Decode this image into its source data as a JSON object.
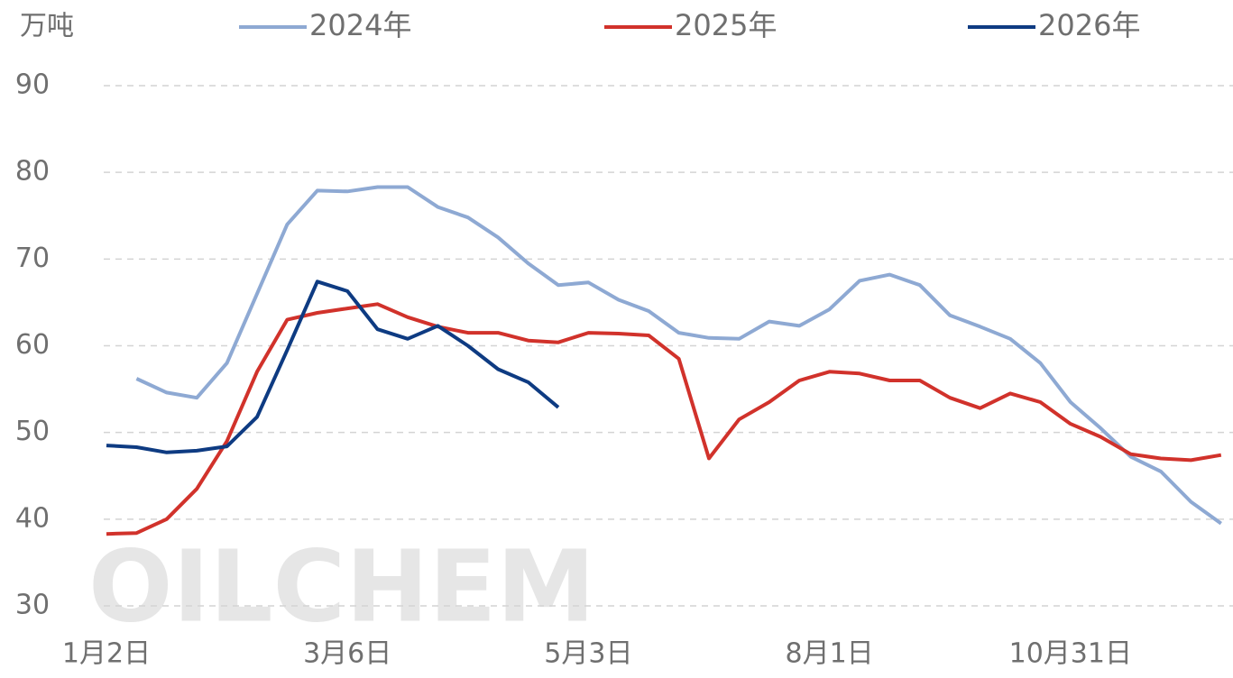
{
  "chart_data": {
    "type": "line",
    "unit_label": "万吨",
    "watermark": "OILCHEM",
    "categories": [
      "1月2日",
      null,
      null,
      null,
      null,
      null,
      null,
      null,
      "3月6日",
      null,
      null,
      null,
      null,
      null,
      null,
      null,
      "5月3日",
      null,
      null,
      null,
      null,
      null,
      null,
      null,
      "8月1日",
      null,
      null,
      null,
      null,
      null,
      null,
      null,
      "10月31日",
      null,
      null,
      null,
      null,
      null
    ],
    "series": [
      {
        "name": "2024年",
        "color": "#8ea9d3",
        "values": [
          null,
          56.2,
          54.6,
          54.0,
          58.0,
          66.0,
          74.0,
          77.9,
          77.8,
          78.3,
          78.3,
          76.0,
          74.8,
          72.5,
          69.5,
          67.0,
          67.3,
          65.3,
          64.0,
          61.5,
          60.9,
          60.8,
          62.8,
          62.3,
          64.2,
          67.5,
          68.2,
          67.0,
          63.5,
          62.2,
          60.8,
          58.0,
          53.5,
          50.5,
          47.2,
          45.5,
          42.0,
          39.5
        ]
      },
      {
        "name": "2025年",
        "color": "#d1322b",
        "values": [
          38.3,
          38.4,
          40.0,
          43.5,
          49.0,
          57.0,
          63.0,
          63.8,
          64.3,
          64.8,
          63.3,
          62.2,
          61.5,
          61.5,
          60.6,
          60.4,
          61.5,
          61.4,
          61.2,
          58.5,
          47.0,
          51.5,
          53.5,
          56.0,
          57.0,
          56.8,
          56.0,
          56.0,
          54.0,
          52.8,
          54.5,
          53.5,
          51.0,
          49.5,
          47.5,
          47.0,
          46.8,
          47.4
        ]
      },
      {
        "name": "2026年",
        "color": "#0e3b82",
        "values": [
          48.5,
          48.3,
          47.7,
          47.9,
          48.4,
          51.8,
          59.5,
          67.4,
          66.3,
          61.9,
          60.8,
          62.3,
          60.0,
          57.3,
          55.8,
          52.9,
          null,
          null,
          null,
          null,
          null,
          null,
          null,
          null,
          null,
          null,
          null,
          null,
          null,
          null,
          null,
          null,
          null,
          null,
          null,
          null,
          null,
          null
        ]
      }
    ],
    "ylim": [
      30,
      90
    ],
    "yticks": [
      30,
      40,
      50,
      60,
      70,
      80,
      90
    ],
    "grid": true,
    "legend": "top"
  }
}
